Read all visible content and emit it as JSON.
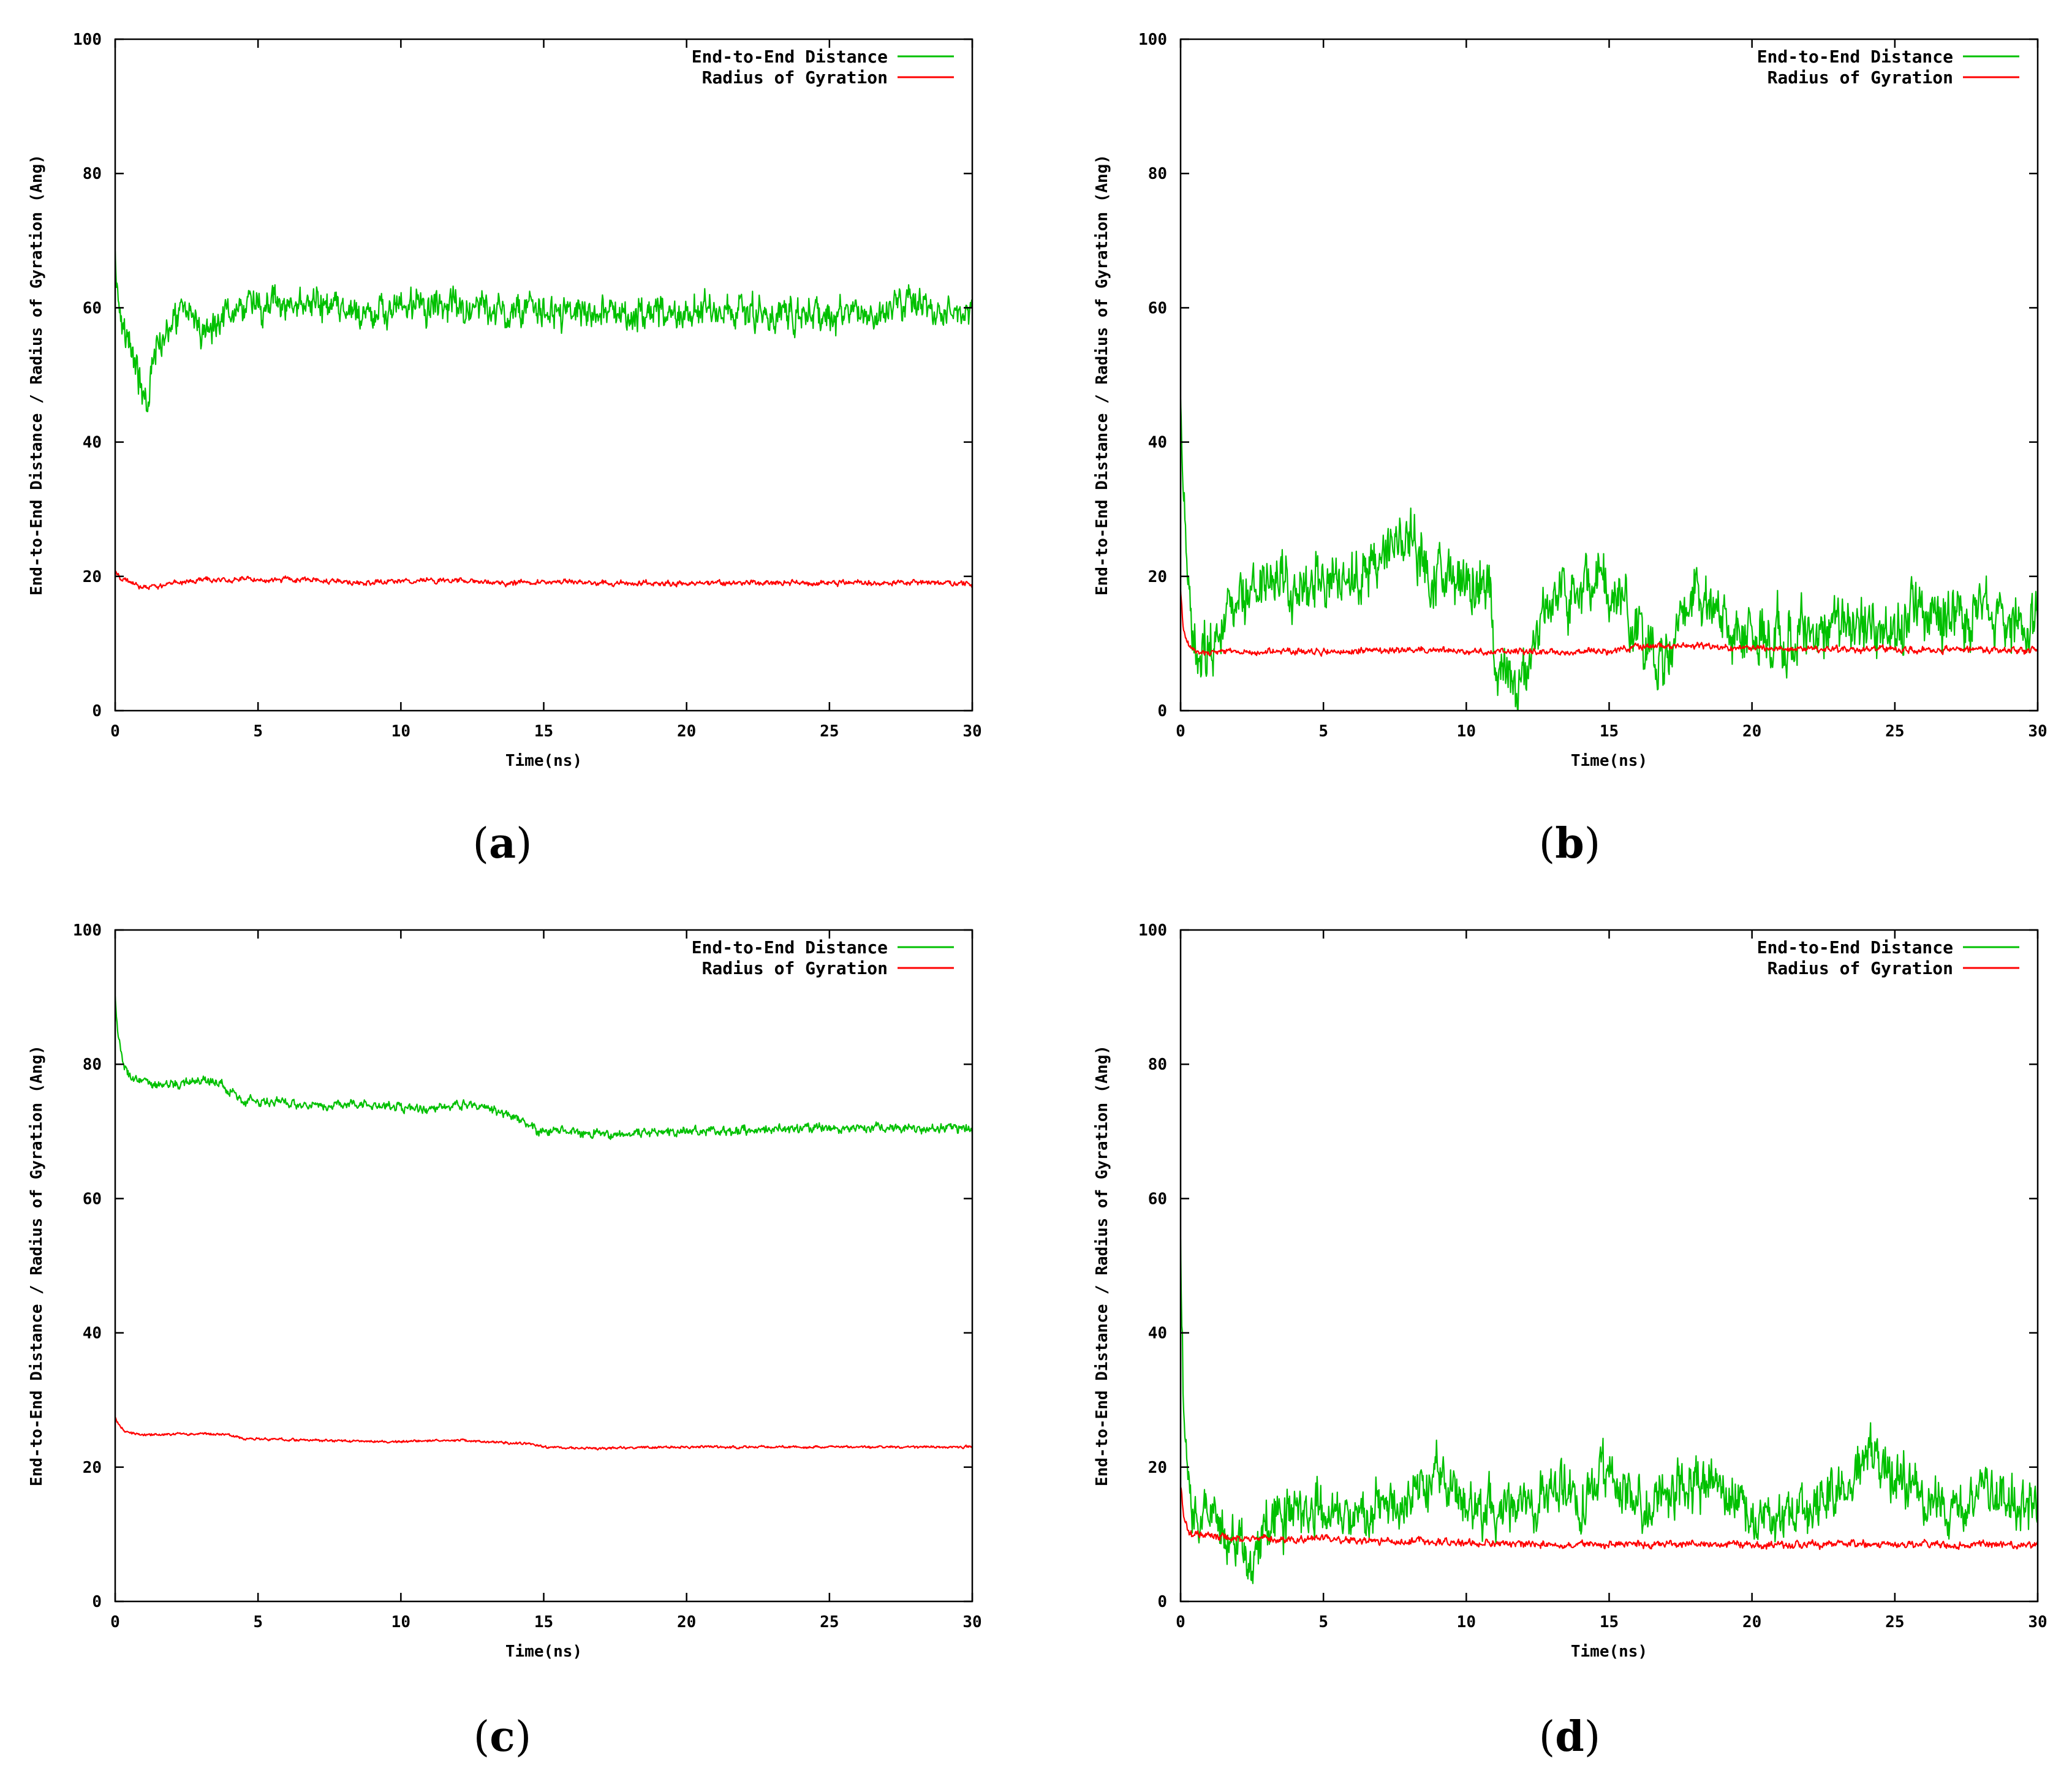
{
  "figure": {
    "panel_labels": [
      "(a)",
      "(b)",
      "(c)",
      "(d)"
    ]
  },
  "colors": {
    "end_to_end": "#00c000",
    "gyration": "#ff0000"
  },
  "chart_data": [
    {
      "type": "line",
      "panel": "a",
      "xlabel": "Time(ns)",
      "ylabel": "End-to-End Distance / Radius of Gyration (Ang)",
      "xlim": [
        0,
        30
      ],
      "ylim": [
        0,
        100
      ],
      "xticks": [
        "0",
        "5",
        "10",
        "15",
        "20",
        "25",
        "30"
      ],
      "yticks": [
        "0",
        "20",
        "40",
        "60",
        "80",
        "100"
      ],
      "legend": {
        "position": "top-right"
      },
      "series": [
        {
          "name": "End-to-End Distance",
          "color": "#00c000",
          "noise": 1.6,
          "x": [
            0,
            0.1,
            0.3,
            0.6,
            0.9,
            1.1,
            1.3,
            1.6,
            2,
            2.5,
            3,
            3.5,
            4,
            5,
            6,
            7,
            8,
            9,
            10,
            11,
            12,
            13,
            14,
            15,
            16,
            17,
            18,
            19,
            20,
            21,
            22,
            23,
            24,
            25,
            26,
            27,
            28,
            29,
            30
          ],
          "y": [
            68,
            62,
            58,
            53,
            48,
            45,
            52,
            56,
            58,
            59,
            57,
            58,
            60,
            60.5,
            60,
            60.5,
            59,
            59,
            60,
            60,
            60.5,
            59.5,
            60,
            59.5,
            58.5,
            59.5,
            59,
            59.5,
            59,
            60,
            59.5,
            59,
            59.5,
            59,
            58.5,
            60,
            60,
            59.5,
            59.5
          ]
        },
        {
          "name": "Radius of Gyration",
          "color": "#ff0000",
          "noise": 0.25,
          "x": [
            0,
            0.3,
            0.7,
            1,
            1.5,
            2,
            3,
            5,
            7,
            8.5,
            10,
            12,
            14,
            15,
            17,
            20,
            23,
            25,
            28,
            30
          ],
          "y": [
            20.5,
            19.5,
            18.8,
            18.3,
            18.5,
            19,
            19.5,
            19.5,
            19.5,
            19,
            19.3,
            19.4,
            19,
            19.2,
            19,
            19,
            19,
            19,
            19.1,
            19
          ]
        }
      ]
    },
    {
      "type": "line",
      "panel": "b",
      "xlabel": "Time(ns)",
      "ylabel": "End-to-End Distance / Radius of Gyration (Ang)",
      "xlim": [
        0,
        30
      ],
      "ylim": [
        0,
        100
      ],
      "xticks": [
        "0",
        "5",
        "10",
        "15",
        "20",
        "25",
        "30"
      ],
      "yticks": [
        "0",
        "20",
        "40",
        "60",
        "80",
        "100"
      ],
      "legend": {
        "position": "top-right"
      },
      "series": [
        {
          "name": "End-to-End Distance",
          "color": "#00c000",
          "noise": 2.8,
          "x": [
            0,
            0.05,
            0.15,
            0.3,
            0.5,
            1,
            1.5,
            2,
            3,
            4,
            5,
            6,
            7,
            8,
            8.5,
            9,
            10,
            10.8,
            11,
            11.5,
            12,
            12.5,
            13,
            14,
            15,
            16,
            16.5,
            17,
            17.5,
            18,
            19,
            20,
            21,
            22,
            23,
            24,
            25,
            26,
            27,
            28,
            29,
            30
          ],
          "y": [
            50,
            35,
            25,
            15,
            11,
            10,
            13,
            17,
            20,
            19,
            20,
            19,
            23,
            26,
            22,
            21,
            20,
            19,
            5,
            4,
            5,
            12,
            17,
            18,
            19,
            13,
            9,
            8,
            12,
            16,
            13,
            12,
            11,
            12,
            13,
            12,
            12,
            16,
            14,
            15,
            13,
            13
          ]
        },
        {
          "name": "Radius of Gyration",
          "color": "#ff0000",
          "noise": 0.3,
          "x": [
            0,
            0.1,
            0.3,
            0.6,
            1,
            3,
            5,
            8,
            10,
            12,
            15,
            16,
            17,
            18,
            20,
            25,
            28,
            30
          ],
          "y": [
            18,
            12,
            9.5,
            8.8,
            8.7,
            8.8,
            8.8,
            9,
            8.9,
            8.8,
            8.9,
            9.5,
            9.8,
            9.6,
            9.3,
            9.1,
            9,
            9
          ]
        }
      ]
    },
    {
      "type": "line",
      "panel": "c",
      "xlabel": "Time(ns)",
      "ylabel": "End-to-End Distance / Radius of Gyration (Ang)",
      "xlim": [
        0,
        30
      ],
      "ylim": [
        0,
        100
      ],
      "xticks": [
        "0",
        "5",
        "10",
        "15",
        "20",
        "25",
        "30"
      ],
      "yticks": [
        "0",
        "20",
        "40",
        "60",
        "80",
        "100"
      ],
      "legend": {
        "position": "top-right"
      },
      "series": [
        {
          "name": "End-to-End Distance",
          "color": "#00c000",
          "noise": 0.45,
          "x": [
            0,
            0.1,
            0.3,
            0.5,
            1,
            2,
            3,
            3.5,
            4,
            4.5,
            5,
            7,
            9,
            10,
            11,
            12,
            13,
            14,
            14.5,
            14.8,
            15,
            16,
            17,
            20,
            25,
            30
          ],
          "y": [
            90,
            84,
            80,
            78,
            77,
            77,
            77.5,
            77.5,
            76,
            74.5,
            74.5,
            74,
            74,
            73.5,
            73,
            74,
            73.5,
            72,
            71,
            69.5,
            70,
            70,
            69.5,
            70,
            70.5,
            70.5
          ]
        },
        {
          "name": "Radius of Gyration",
          "color": "#ff0000",
          "noise": 0.12,
          "x": [
            0,
            0.1,
            0.3,
            0.6,
            1,
            3,
            4,
            4.5,
            7,
            10,
            12,
            13,
            14.5,
            15,
            16,
            20,
            25,
            30
          ],
          "y": [
            27.5,
            26.5,
            25.5,
            25,
            24.8,
            25,
            24.8,
            24.2,
            24,
            23.8,
            24,
            23.8,
            23.5,
            23,
            22.8,
            23,
            23,
            23
          ]
        }
      ]
    },
    {
      "type": "line",
      "panel": "d",
      "xlabel": "Time(ns)",
      "ylabel": "End-to-End Distance / Radius of Gyration (Ang)",
      "xlim": [
        0,
        30
      ],
      "ylim": [
        0,
        100
      ],
      "xticks": [
        "0",
        "5",
        "10",
        "15",
        "20",
        "25",
        "30"
      ],
      "yticks": [
        "0",
        "20",
        "40",
        "60",
        "80",
        "100"
      ],
      "legend": {
        "position": "top-right"
      },
      "series": [
        {
          "name": "End-to-End Distance",
          "color": "#00c000",
          "noise": 2.6,
          "x": [
            0,
            0.05,
            0.1,
            0.2,
            0.35,
            0.6,
            1,
            1.5,
            2,
            2.5,
            3,
            4,
            5,
            6,
            7,
            8,
            9,
            10,
            11,
            12,
            13,
            14,
            15,
            16,
            17,
            18,
            19,
            20,
            21,
            22,
            23,
            24,
            25,
            26,
            27,
            28,
            29,
            30
          ],
          "y": [
            52,
            40,
            30,
            20,
            14,
            12,
            14,
            11,
            8,
            6,
            12,
            14,
            14,
            12,
            14,
            16,
            18,
            15,
            13,
            14,
            17,
            15,
            19,
            14,
            15,
            18,
            16,
            13,
            11,
            12,
            17,
            22,
            19,
            16,
            13,
            16,
            15,
            14
          ]
        },
        {
          "name": "Radius of Gyration",
          "color": "#ff0000",
          "noise": 0.35,
          "x": [
            0,
            0.1,
            0.3,
            0.6,
            1,
            2,
            3,
            4,
            5,
            6,
            8,
            10,
            12,
            15,
            20,
            25,
            30
          ],
          "y": [
            17,
            13,
            10,
            9.8,
            9.8,
            9.5,
            9.3,
            9,
            9.5,
            9,
            9,
            8.8,
            8.5,
            8.5,
            8.5,
            8.5,
            8.5
          ]
        }
      ]
    }
  ]
}
